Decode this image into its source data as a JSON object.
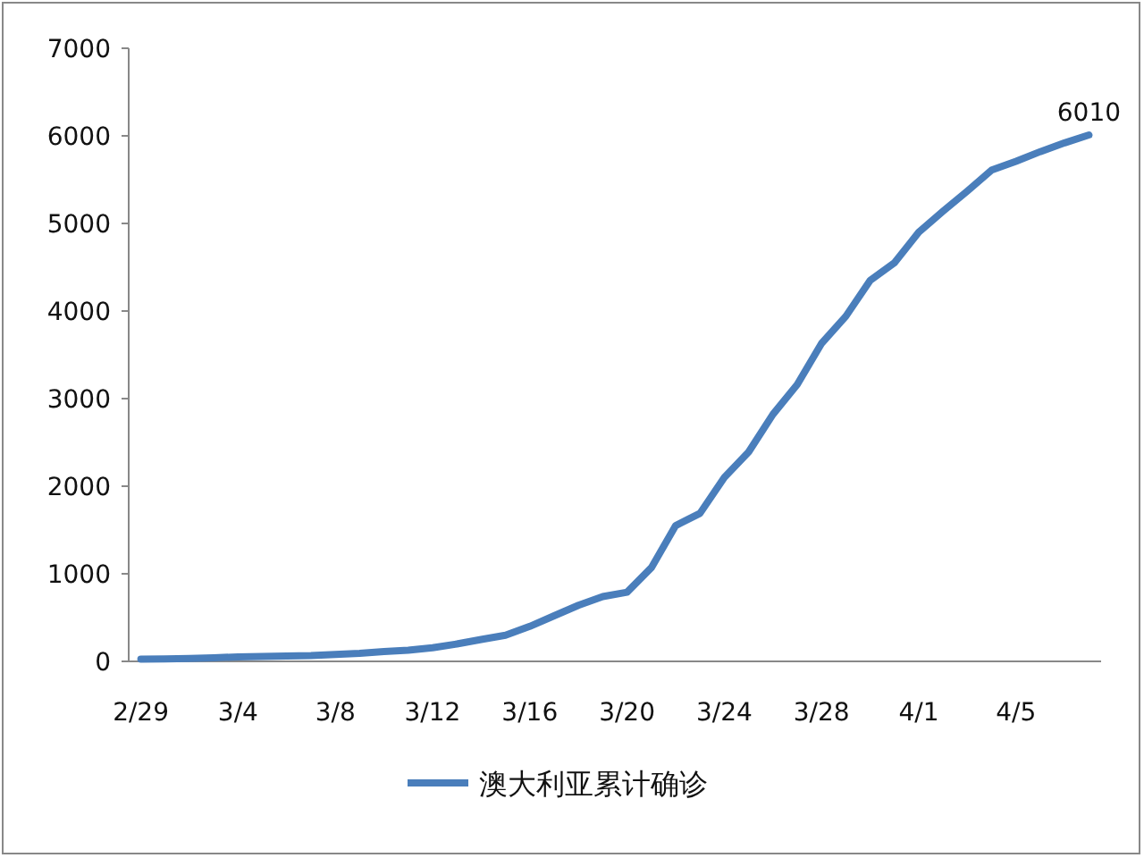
{
  "chart_data": {
    "type": "line",
    "categories": [
      "2/29",
      null,
      null,
      null,
      "3/4",
      null,
      null,
      null,
      "3/8",
      null,
      null,
      null,
      "3/12",
      null,
      null,
      null,
      "3/16",
      null,
      null,
      null,
      "3/20",
      null,
      null,
      null,
      "3/24",
      null,
      null,
      null,
      "3/28",
      null,
      null,
      null,
      "4/1",
      null,
      null,
      null,
      "4/5",
      null,
      null,
      null
    ],
    "series": [
      {
        "name": "澳大利亚累计确诊",
        "color": "#4a7ebb",
        "values": [
          25,
          27,
          33,
          40,
          52,
          55,
          60,
          66,
          80,
          92,
          112,
          128,
          156,
          199,
          250,
          298,
          400,
          520,
          640,
          740,
          790,
          1070,
          1550,
          1690,
          2100,
          2390,
          2820,
          3160,
          3630,
          3940,
          4350,
          4550,
          4900,
          5140,
          5370,
          5610,
          5710,
          5820,
          5920,
          6010
        ],
        "value_labels": [
          null,
          null,
          null,
          null,
          null,
          null,
          null,
          null,
          null,
          null,
          null,
          null,
          null,
          null,
          null,
          null,
          null,
          null,
          null,
          null,
          null,
          null,
          null,
          null,
          null,
          null,
          null,
          null,
          null,
          null,
          null,
          null,
          null,
          null,
          null,
          null,
          null,
          null,
          null,
          "6010"
        ]
      }
    ],
    "ylim": [
      0,
      7000
    ],
    "yticks": [
      0,
      1000,
      2000,
      3000,
      4000,
      5000,
      6000,
      7000
    ],
    "legend": "bottom"
  }
}
